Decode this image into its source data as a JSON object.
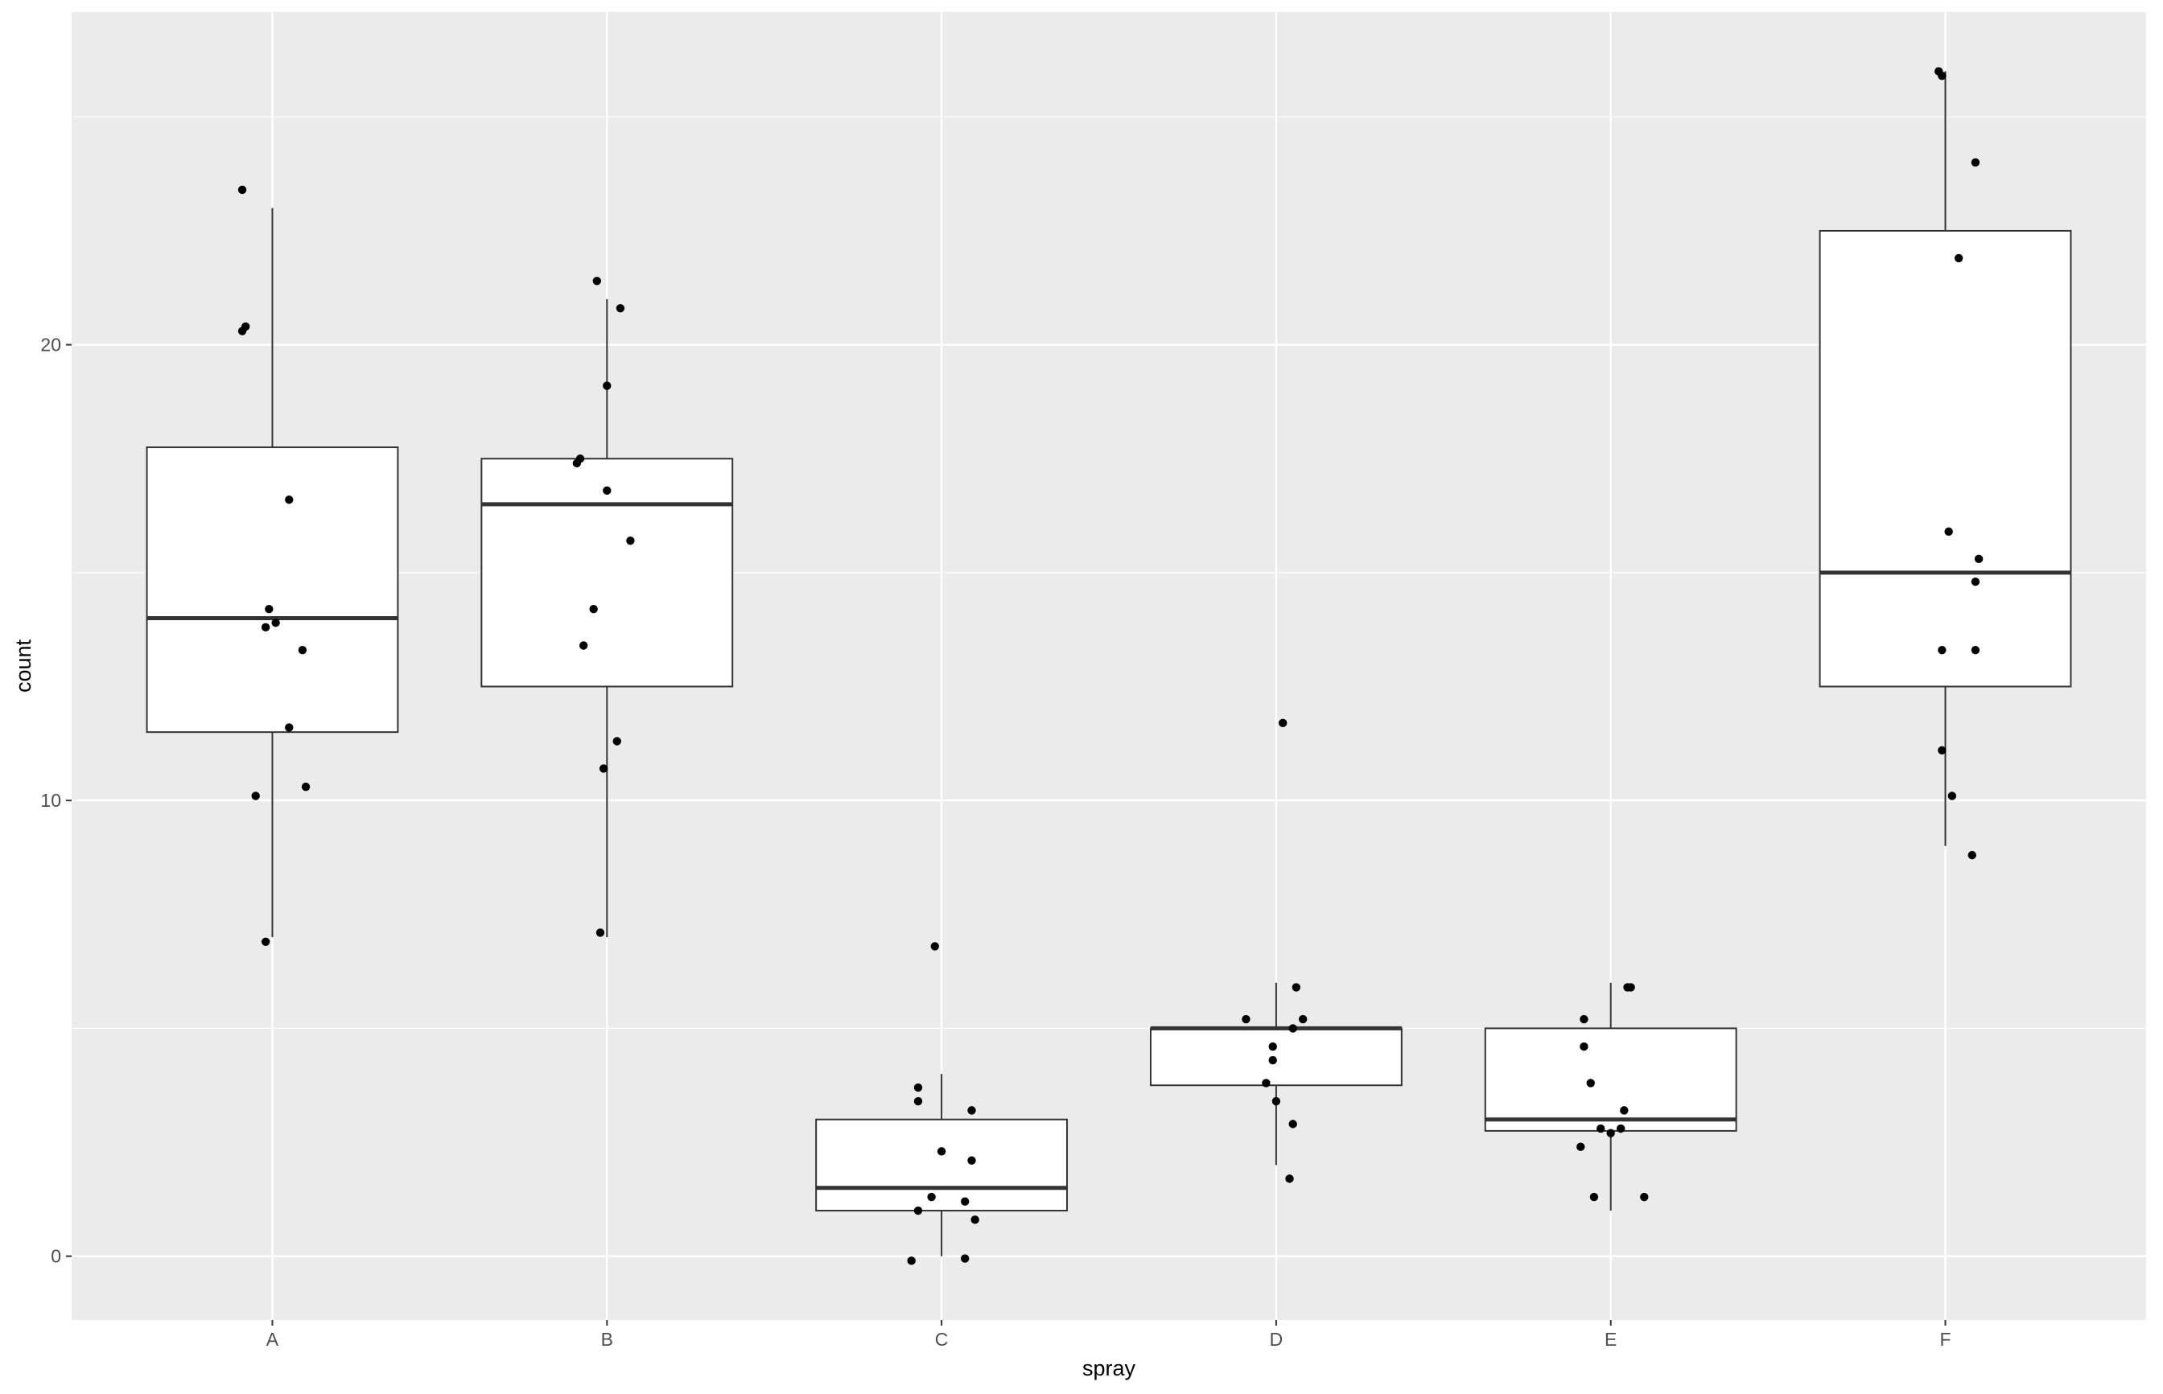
{
  "chart_data": {
    "type": "boxplot",
    "xlabel": "spray",
    "ylabel": "count",
    "categories": [
      "A",
      "B",
      "C",
      "D",
      "E",
      "F"
    ],
    "ylim": [
      -1.4,
      27.3
    ],
    "y_ticks": [
      0,
      10,
      20
    ],
    "y_tick_labels": [
      "0",
      "10",
      "20"
    ],
    "grid": true,
    "colors": {
      "panel_background": "#ebebeb",
      "grid_line": "#ffffff",
      "box_fill": "#ffffff",
      "box_outline": "#333333",
      "point": "#000000"
    },
    "boxes": [
      {
        "category": "A",
        "q1": 11.5,
        "median": 14.0,
        "q3": 17.75,
        "whisker_low": 7,
        "whisker_high": 23
      },
      {
        "category": "B",
        "q1": 12.5,
        "median": 16.5,
        "q3": 17.5,
        "whisker_low": 7,
        "whisker_high": 21
      },
      {
        "category": "C",
        "q1": 1.0,
        "median": 1.5,
        "q3": 3.0,
        "whisker_low": 0,
        "whisker_high": 4
      },
      {
        "category": "D",
        "q1": 3.75,
        "median": 5.0,
        "q3": 5.0,
        "whisker_low": 2,
        "whisker_high": 6
      },
      {
        "category": "E",
        "q1": 2.75,
        "median": 3.0,
        "q3": 5.0,
        "whisker_low": 1,
        "whisker_high": 6
      },
      {
        "category": "F",
        "q1": 12.5,
        "median": 15.0,
        "q3": 22.5,
        "whisker_low": 9,
        "whisker_high": 26
      }
    ],
    "points": [
      {
        "category": "A",
        "jitter": -0.09,
        "y": 23.4
      },
      {
        "category": "A",
        "jitter": -0.09,
        "y": 20.3
      },
      {
        "category": "A",
        "jitter": -0.08,
        "y": 20.4
      },
      {
        "category": "A",
        "jitter": 0.05,
        "y": 16.6
      },
      {
        "category": "A",
        "jitter": -0.01,
        "y": 14.2
      },
      {
        "category": "A",
        "jitter": -0.02,
        "y": 13.8
      },
      {
        "category": "A",
        "jitter": 0.01,
        "y": 13.9
      },
      {
        "category": "A",
        "jitter": 0.09,
        "y": 13.3
      },
      {
        "category": "A",
        "jitter": 0.05,
        "y": 11.6
      },
      {
        "category": "A",
        "jitter": -0.05,
        "y": 10.1
      },
      {
        "category": "A",
        "jitter": 0.1,
        "y": 10.3
      },
      {
        "category": "A",
        "jitter": -0.02,
        "y": 6.9
      },
      {
        "category": "B",
        "jitter": -0.03,
        "y": 21.4
      },
      {
        "category": "B",
        "jitter": 0.04,
        "y": 20.8
      },
      {
        "category": "B",
        "jitter": 0.0,
        "y": 19.1
      },
      {
        "category": "B",
        "jitter": -0.09,
        "y": 17.4
      },
      {
        "category": "B",
        "jitter": -0.08,
        "y": 17.5
      },
      {
        "category": "B",
        "jitter": 0.0,
        "y": 16.8
      },
      {
        "category": "B",
        "jitter": 0.07,
        "y": 15.7
      },
      {
        "category": "B",
        "jitter": -0.04,
        "y": 14.2
      },
      {
        "category": "B",
        "jitter": -0.07,
        "y": 13.4
      },
      {
        "category": "B",
        "jitter": 0.03,
        "y": 11.3
      },
      {
        "category": "B",
        "jitter": -0.01,
        "y": 10.7
      },
      {
        "category": "B",
        "jitter": -0.02,
        "y": 7.1
      },
      {
        "category": "C",
        "jitter": -0.02,
        "y": 6.8
      },
      {
        "category": "C",
        "jitter": -0.07,
        "y": 3.7
      },
      {
        "category": "C",
        "jitter": -0.07,
        "y": 3.4
      },
      {
        "category": "C",
        "jitter": 0.09,
        "y": 3.2
      },
      {
        "category": "C",
        "jitter": 0.0,
        "y": 2.3
      },
      {
        "category": "C",
        "jitter": 0.09,
        "y": 2.1
      },
      {
        "category": "C",
        "jitter": -0.03,
        "y": 1.3
      },
      {
        "category": "C",
        "jitter": 0.07,
        "y": 1.2
      },
      {
        "category": "C",
        "jitter": -0.07,
        "y": 1.0
      },
      {
        "category": "C",
        "jitter": 0.1,
        "y": 0.8
      },
      {
        "category": "C",
        "jitter": -0.09,
        "y": -0.1
      },
      {
        "category": "C",
        "jitter": 0.07,
        "y": -0.05
      },
      {
        "category": "D",
        "jitter": 0.02,
        "y": 11.7
      },
      {
        "category": "D",
        "jitter": 0.06,
        "y": 5.9
      },
      {
        "category": "D",
        "jitter": -0.09,
        "y": 5.2
      },
      {
        "category": "D",
        "jitter": 0.08,
        "y": 5.2
      },
      {
        "category": "D",
        "jitter": 0.05,
        "y": 5.0
      },
      {
        "category": "D",
        "jitter": -0.01,
        "y": 4.6
      },
      {
        "category": "D",
        "jitter": -0.01,
        "y": 4.3
      },
      {
        "category": "D",
        "jitter": -0.03,
        "y": 3.8
      },
      {
        "category": "D",
        "jitter": 0.0,
        "y": 3.4
      },
      {
        "category": "D",
        "jitter": 0.05,
        "y": 2.9
      },
      {
        "category": "D",
        "jitter": 0.04,
        "y": 1.7
      },
      {
        "category": "E",
        "jitter": 0.05,
        "y": 5.9
      },
      {
        "category": "E",
        "jitter": 0.06,
        "y": 5.9
      },
      {
        "category": "E",
        "jitter": -0.08,
        "y": 5.2
      },
      {
        "category": "E",
        "jitter": -0.08,
        "y": 4.6
      },
      {
        "category": "E",
        "jitter": -0.06,
        "y": 3.8
      },
      {
        "category": "E",
        "jitter": 0.04,
        "y": 3.2
      },
      {
        "category": "E",
        "jitter": 0.03,
        "y": 2.8
      },
      {
        "category": "E",
        "jitter": -0.03,
        "y": 2.8
      },
      {
        "category": "E",
        "jitter": 0.0,
        "y": 2.7
      },
      {
        "category": "E",
        "jitter": -0.09,
        "y": 2.4
      },
      {
        "category": "E",
        "jitter": -0.05,
        "y": 1.3
      },
      {
        "category": "E",
        "jitter": 0.1,
        "y": 1.3
      },
      {
        "category": "F",
        "jitter": -0.02,
        "y": 26.0
      },
      {
        "category": "F",
        "jitter": -0.01,
        "y": 25.9
      },
      {
        "category": "F",
        "jitter": 0.09,
        "y": 24.0
      },
      {
        "category": "F",
        "jitter": 0.04,
        "y": 21.9
      },
      {
        "category": "F",
        "jitter": 0.01,
        "y": 15.9
      },
      {
        "category": "F",
        "jitter": 0.1,
        "y": 15.3
      },
      {
        "category": "F",
        "jitter": 0.09,
        "y": 14.8
      },
      {
        "category": "F",
        "jitter": -0.01,
        "y": 13.3
      },
      {
        "category": "F",
        "jitter": 0.09,
        "y": 13.3
      },
      {
        "category": "F",
        "jitter": -0.01,
        "y": 11.1
      },
      {
        "category": "F",
        "jitter": 0.02,
        "y": 10.1
      },
      {
        "category": "F",
        "jitter": 0.08,
        "y": 8.8
      }
    ]
  }
}
